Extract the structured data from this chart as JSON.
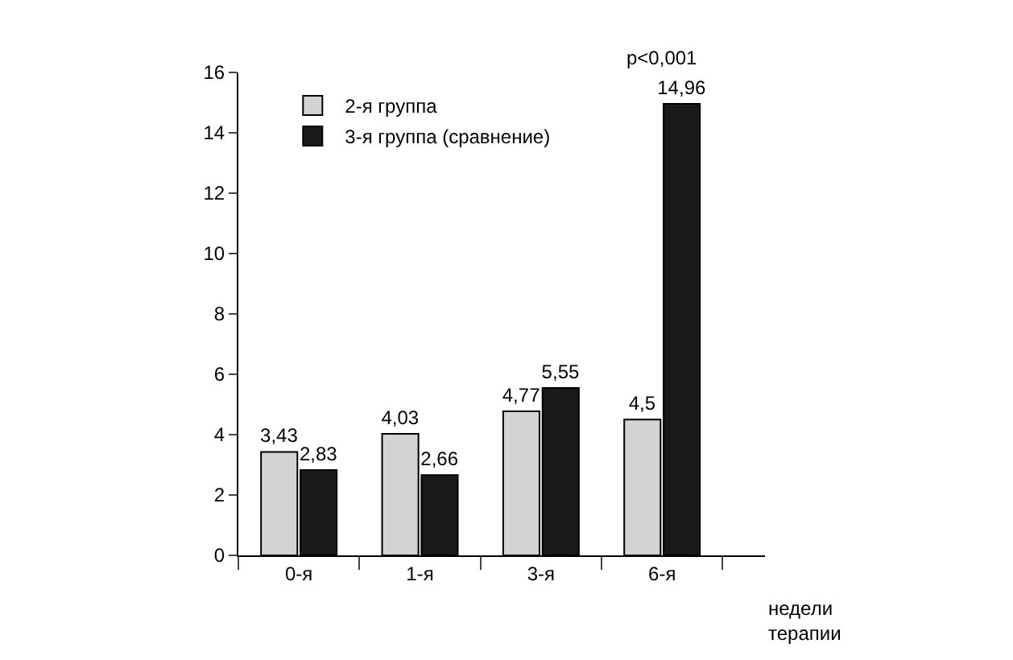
{
  "chart_data": {
    "type": "bar",
    "categories": [
      "0-я",
      "1-я",
      "3-я",
      "6-я"
    ],
    "series": [
      {
        "name": "2-я группа",
        "color": "#d3d3d3",
        "values": [
          3.43,
          4.03,
          4.77,
          4.5
        ],
        "value_labels": [
          "3,43",
          "4,03",
          "4,77",
          "4,5"
        ]
      },
      {
        "name": "3-я группа (сравнение)",
        "color": "#1a1a1a",
        "values": [
          2.83,
          2.66,
          5.55,
          14.96
        ],
        "value_labels": [
          "2,83",
          "2,66",
          "5,55",
          "14,96"
        ]
      }
    ],
    "xlabel": "недели терапии",
    "ylim": [
      0,
      16
    ],
    "yticks": [
      0,
      2,
      4,
      6,
      8,
      10,
      12,
      14,
      16
    ],
    "legend": "top left",
    "annotations": [
      "p<0,001"
    ]
  }
}
